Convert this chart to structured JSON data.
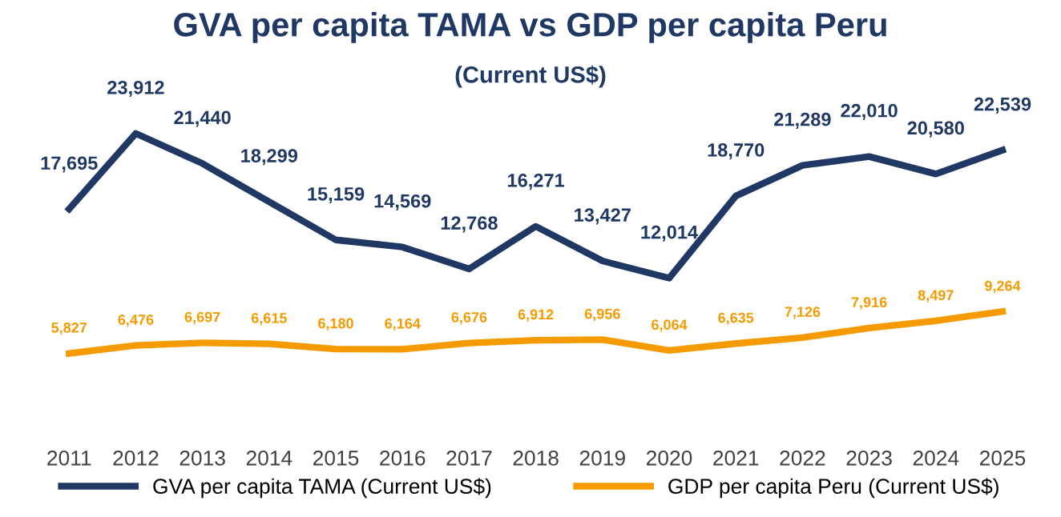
{
  "chart_data": {
    "type": "line",
    "title": "GVA per capita TAMA vs GDP per capita Peru",
    "subtitle": "(Current US$)",
    "categories": [
      "2011",
      "2012",
      "2013",
      "2014",
      "2015",
      "2016",
      "2017",
      "2018",
      "2019",
      "2020",
      "2021",
      "2022",
      "2023",
      "2024",
      "2025"
    ],
    "series": [
      {
        "name": "GVA per capita TAMA (Current US$)",
        "color": "#203864",
        "values": [
          17695,
          23912,
          21440,
          18299,
          15159,
          14569,
          12768,
          16271,
          13427,
          12014,
          18770,
          21289,
          22010,
          20580,
          22539
        ],
        "value_labels": [
          "17,695",
          "23,912",
          "21,440",
          "18,299",
          "15,159",
          "14,569",
          "12,768",
          "16,271",
          "13,427",
          "12,014",
          "18,770",
          "21,289",
          "22,010",
          "20,580",
          "22,539"
        ]
      },
      {
        "name": "GDP per capita Peru (Current US$)",
        "color": "#f59b00",
        "values": [
          5827,
          6476,
          6697,
          6615,
          6180,
          6164,
          6676,
          6912,
          6956,
          6064,
          6635,
          7126,
          7916,
          8497,
          9264
        ],
        "value_labels": [
          "5,827",
          "6,476",
          "6,697",
          "6,615",
          "6,180",
          "6,164",
          "6,676",
          "6,912",
          "6,956",
          "6,064",
          "6,635",
          "7,126",
          "7,916",
          "8,497",
          "9,264"
        ]
      }
    ],
    "legend": "bottom",
    "grid": false,
    "marker": "none",
    "line_style": "solid"
  }
}
